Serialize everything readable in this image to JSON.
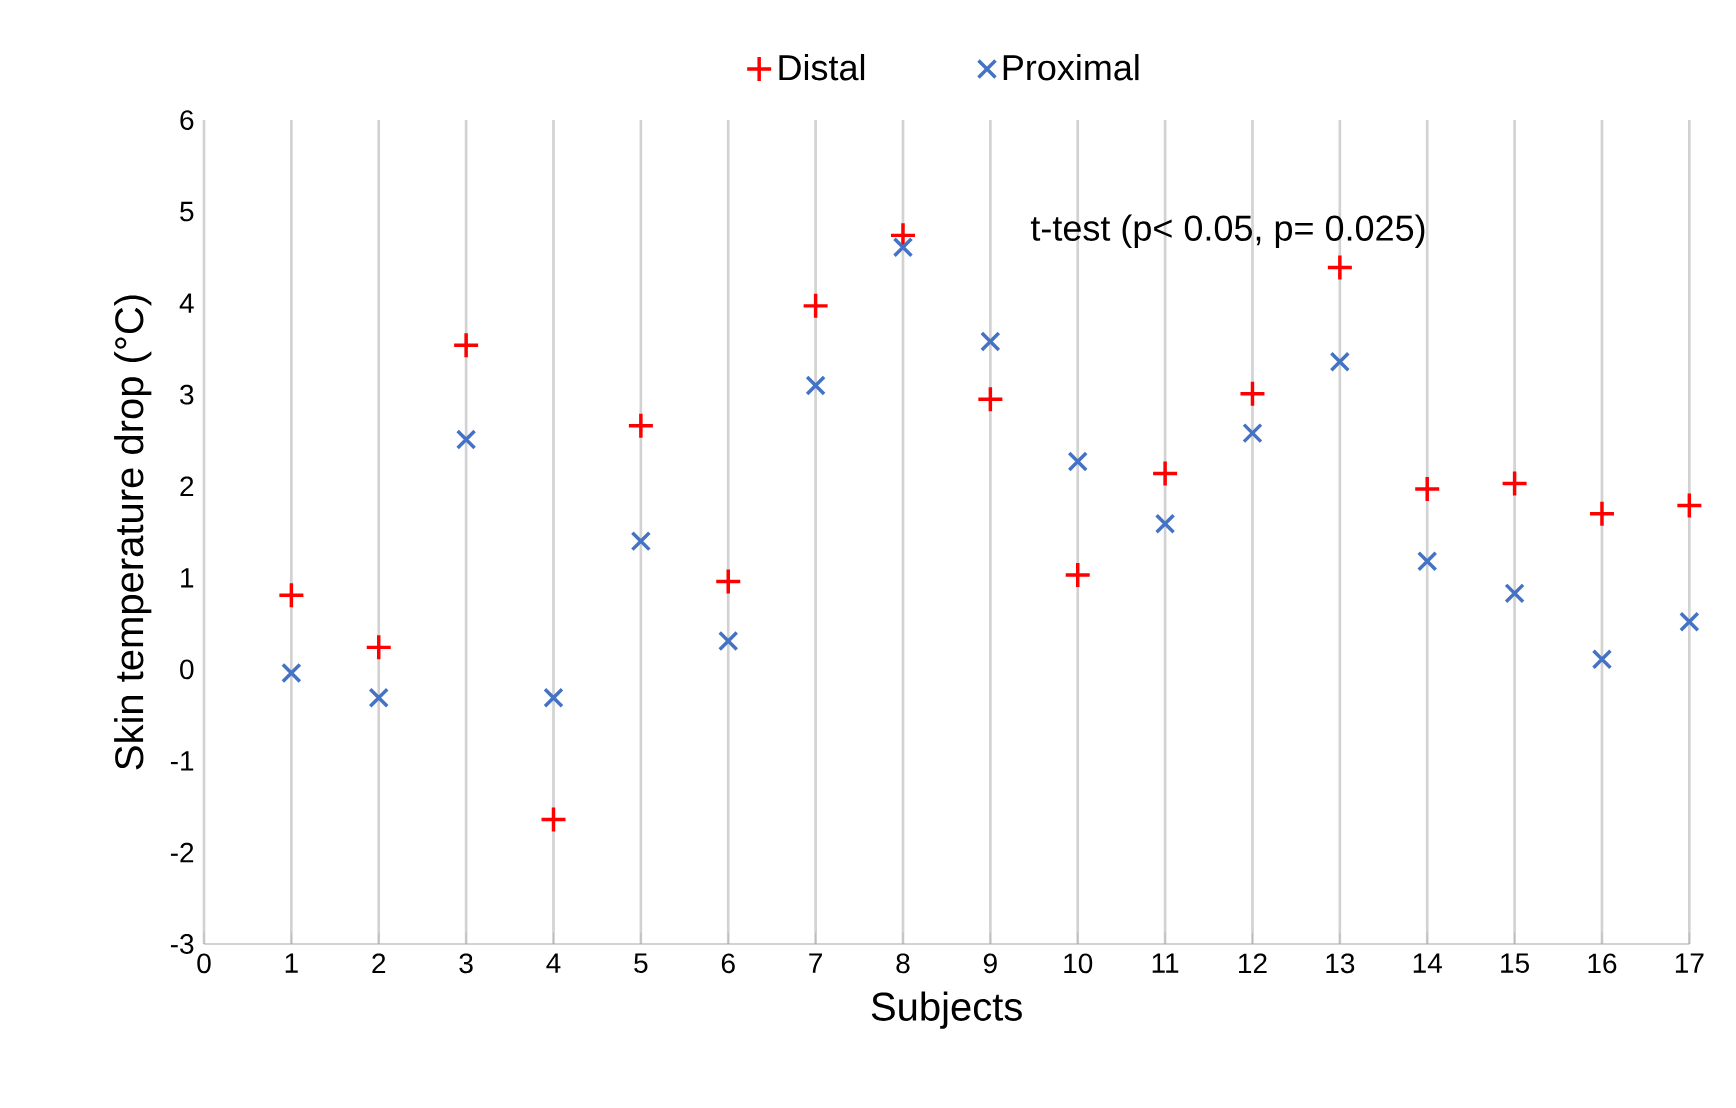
{
  "chart_data": {
    "type": "scatter",
    "xlabel": "Subjects",
    "ylabel": "Skin temperature  drop (°C)",
    "annotations": [
      "t-test (p< 0.05, p= 0.025)"
    ],
    "x": [
      1,
      2,
      3,
      4,
      5,
      6,
      7,
      8,
      9,
      10,
      11,
      12,
      13,
      14,
      15,
      16,
      17
    ],
    "series": [
      {
        "name": "Distal",
        "color": "#ff0000",
        "marker": "plus",
        "values": [
          0.81,
          0.24,
          3.54,
          -1.64,
          2.66,
          0.96,
          3.97,
          4.74,
          2.95,
          1.03,
          2.14,
          3.01,
          4.39,
          1.97,
          2.03,
          1.7,
          1.79
        ]
      },
      {
        "name": "Proximal",
        "color": "#4472c4",
        "marker": "cross",
        "values": [
          -0.04,
          -0.31,
          2.51,
          -0.31,
          1.4,
          0.31,
          3.1,
          4.61,
          3.58,
          2.27,
          1.59,
          2.58,
          3.36,
          1.18,
          0.83,
          0.11,
          0.52
        ]
      }
    ],
    "xlim": [
      0,
      17
    ],
    "ylim": [
      -3,
      6
    ],
    "xticks": [
      0,
      1,
      2,
      3,
      4,
      5,
      6,
      7,
      8,
      9,
      10,
      11,
      12,
      13,
      14,
      15,
      16,
      17
    ],
    "yticks": [
      -3,
      -2,
      -1,
      0,
      1,
      2,
      3,
      4,
      5,
      6
    ],
    "grid": "x",
    "legend": "top"
  }
}
